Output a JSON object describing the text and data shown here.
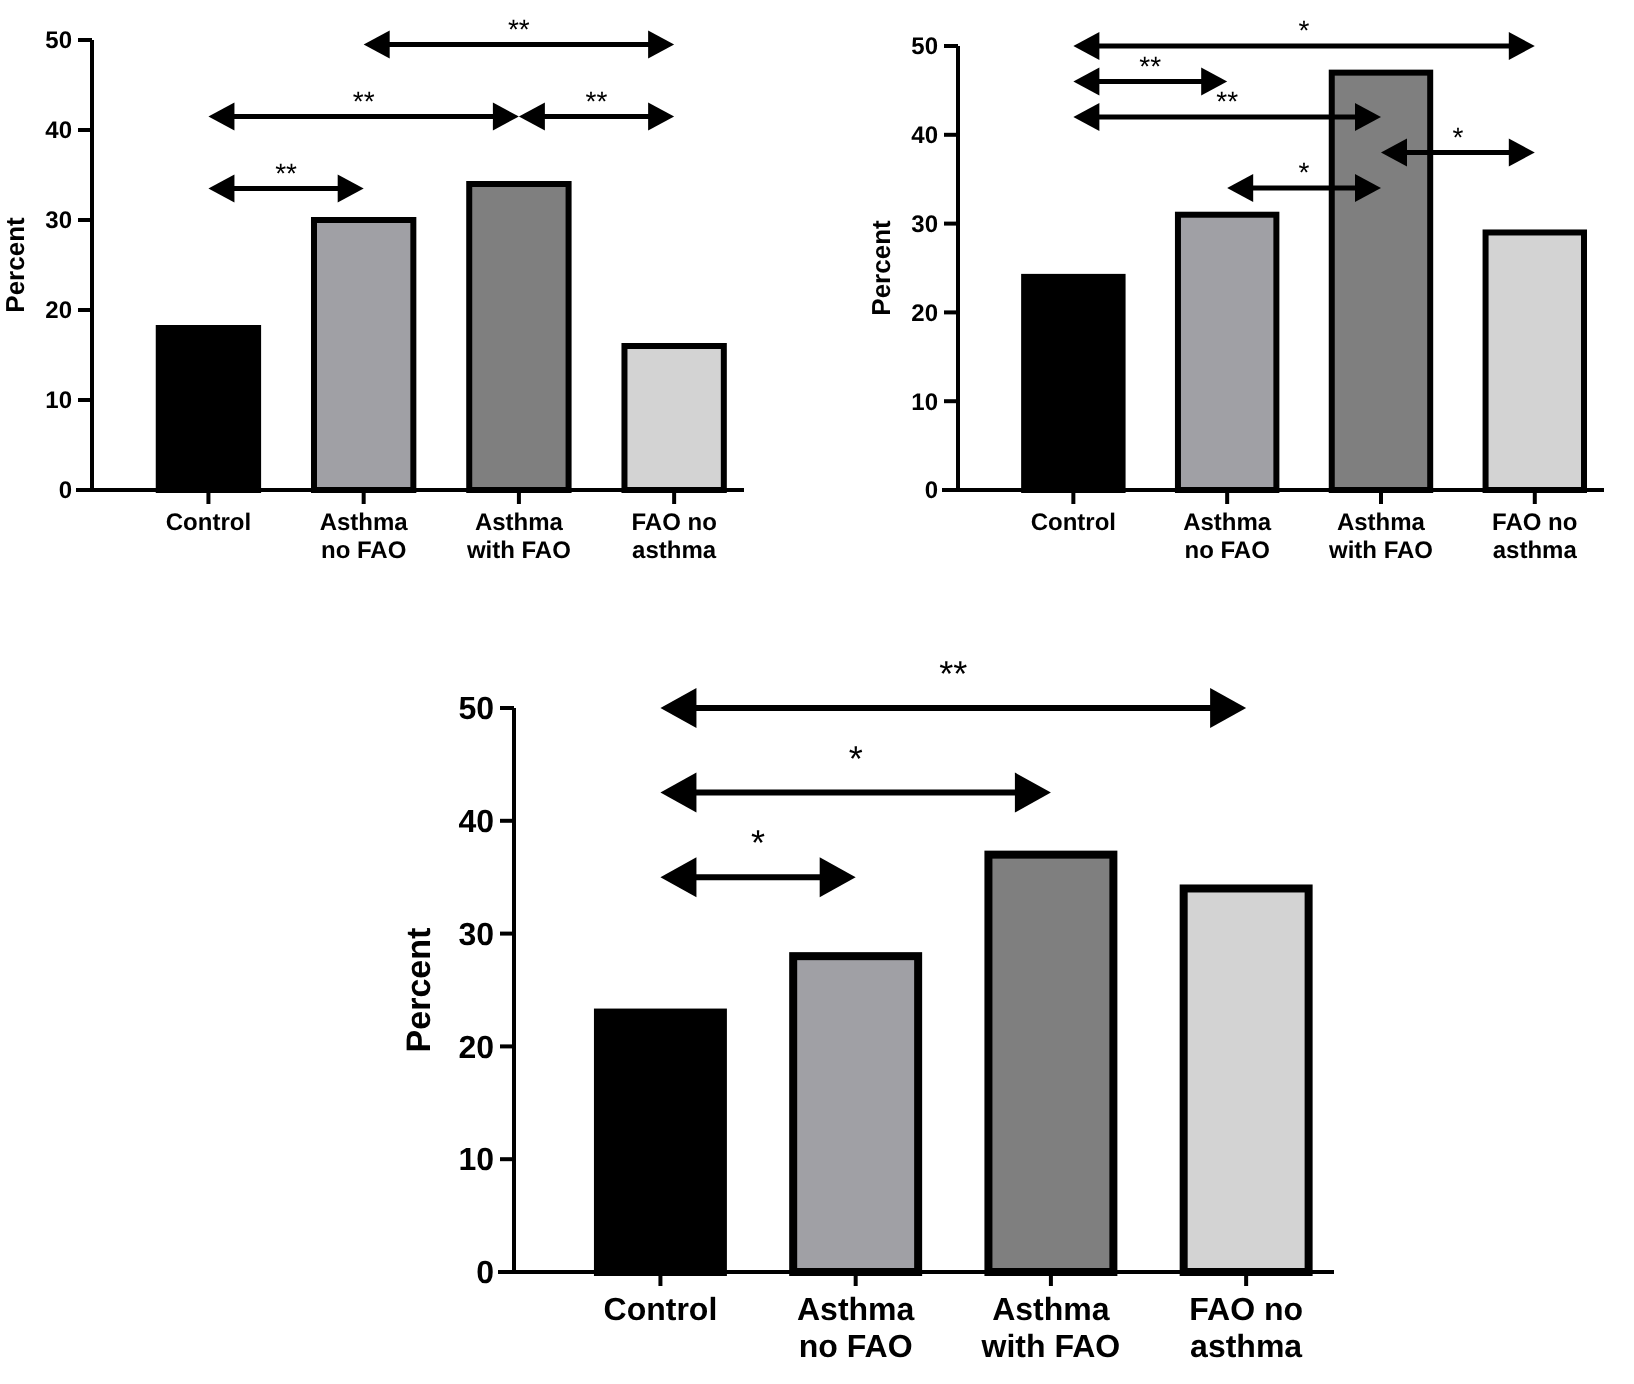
{
  "chart_data": [
    {
      "type": "bar",
      "ylabel": "Percent",
      "categories": [
        "Control",
        "Asthma no FAO",
        "Asthma with FAO",
        "FAO no asthma"
      ],
      "values": [
        18,
        30,
        34,
        16
      ],
      "colors": [
        "#000000",
        "#a0a0a5",
        "#7f7f7f",
        "#d3d3d3"
      ],
      "ylim": [
        0,
        50
      ],
      "yticks": [
        0,
        10,
        20,
        30,
        40,
        50
      ],
      "annotations": [
        "**",
        "**",
        "**",
        "**"
      ]
    },
    {
      "type": "bar",
      "ylabel": "Percent",
      "categories": [
        "Control",
        "Asthma no FAO",
        "Asthma with FAO",
        "FAO no asthma"
      ],
      "values": [
        24,
        31,
        47,
        29
      ],
      "colors": [
        "#000000",
        "#a0a0a5",
        "#7f7f7f",
        "#d3d3d3"
      ],
      "ylim": [
        0,
        50
      ],
      "yticks": [
        0,
        10,
        20,
        30,
        40,
        50
      ],
      "annotations": [
        "*",
        "**",
        "**",
        "*",
        "*"
      ]
    },
    {
      "type": "bar",
      "ylabel": "Percent",
      "categories": [
        "Control",
        "Asthma no FAO",
        "Asthma with FAO",
        "FAO no asthma"
      ],
      "values": [
        23,
        28,
        37,
        34
      ],
      "colors": [
        "#000000",
        "#a0a0a5",
        "#7f7f7f",
        "#d3d3d3"
      ],
      "ylim": [
        0,
        50
      ],
      "yticks": [
        0,
        10,
        20,
        30,
        40,
        50
      ],
      "annotations": [
        "**",
        "*",
        "*"
      ]
    }
  ]
}
